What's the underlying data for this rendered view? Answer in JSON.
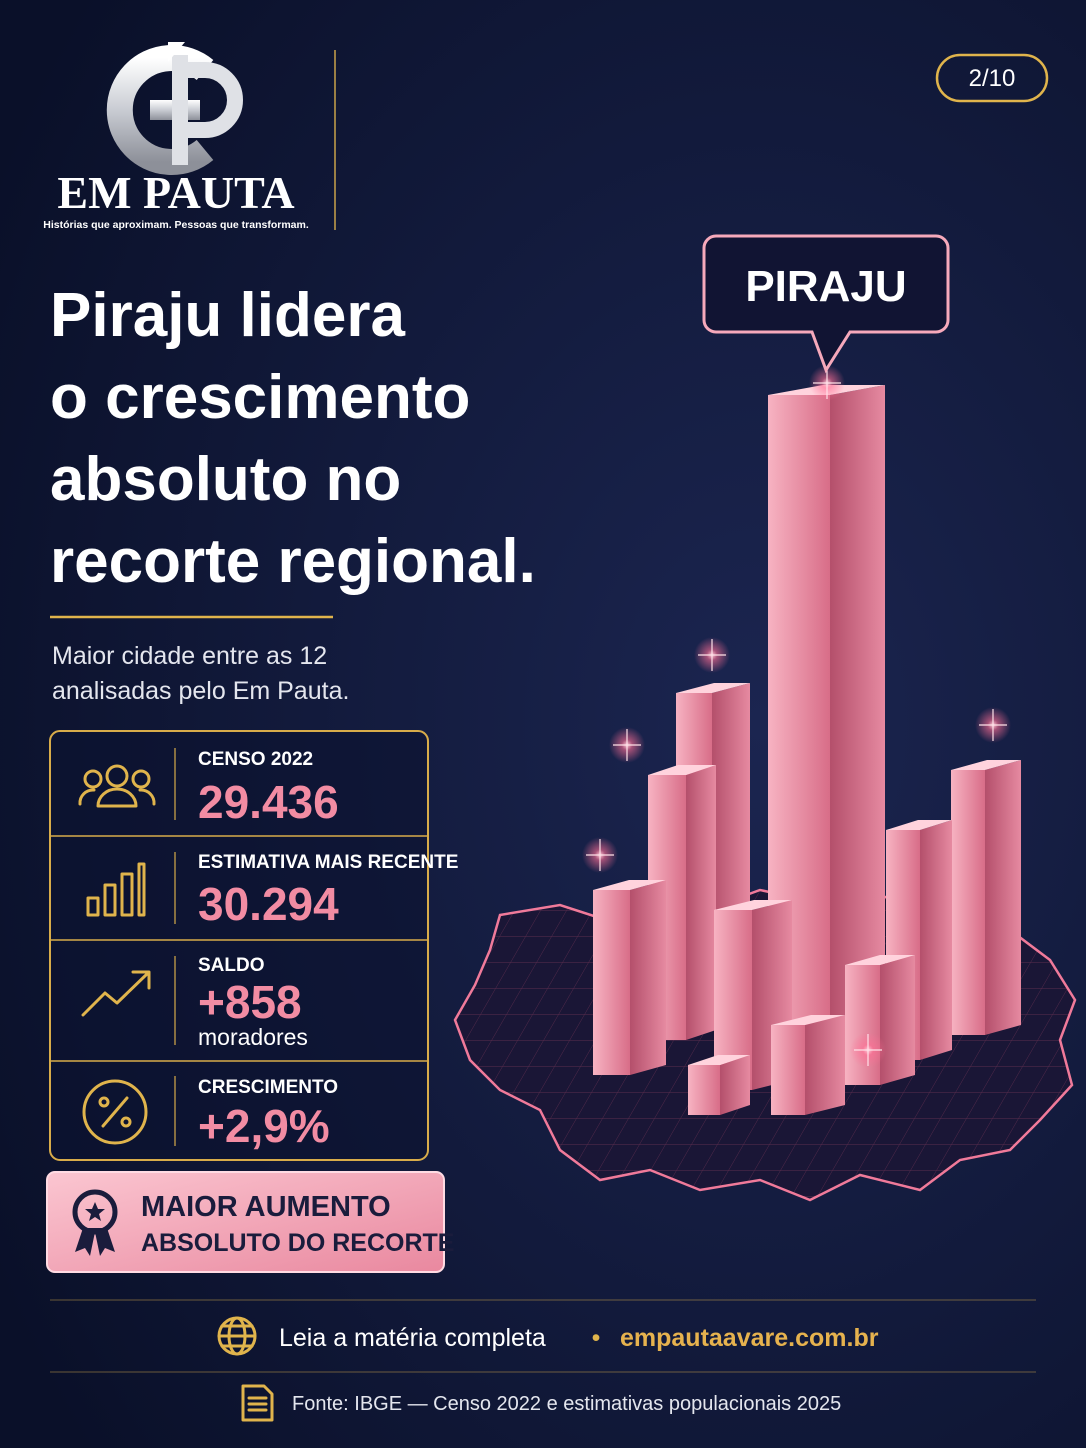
{
  "logo": {
    "name": "EM PAUTA",
    "tagline": "Histórias que aproximam. Pessoas que transformam."
  },
  "page_indicator": "2/10",
  "headline": [
    "Piraju lidera",
    "o crescimento",
    "absoluto no",
    "recorte regional."
  ],
  "subtitle": [
    "Maior cidade entre as 12",
    "analisadas pelo Em Pauta."
  ],
  "stats": [
    {
      "label": "CENSO 2022",
      "value": "29.436"
    },
    {
      "label": "ESTIMATIVA MAIS RECENTE",
      "value": "30.294"
    },
    {
      "label": "SALDO",
      "value": "+858",
      "unit": "moradores"
    },
    {
      "label": "CRESCIMENTO",
      "value": "+2,9%"
    }
  ],
  "badge": [
    "MAIOR AUMENTO",
    "ABSOLUTO DO RECORTE"
  ],
  "highlight_label": "PIRAJU",
  "footer": {
    "cta": "Leia a matéria completa",
    "separator": "•",
    "url": "empautaavare.com.br",
    "source": "Fonte: IBGE — Censo 2022 e estimativas populacionais 2025"
  }
}
